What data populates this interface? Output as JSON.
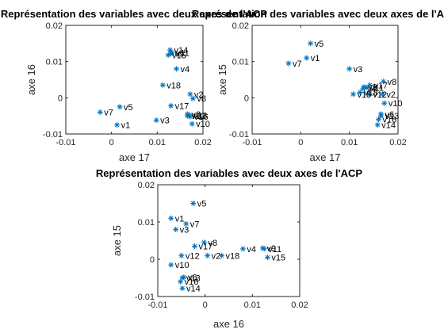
{
  "chart_data": [
    {
      "type": "scatter",
      "title": "Représentation des variables avec deux axes de l'ACP",
      "xlabel": "axe 17",
      "ylabel": "axe 16",
      "xlim": [
        -0.01,
        0.02
      ],
      "ylim": [
        -0.01,
        0.02
      ],
      "xticks": [
        "-0.01",
        "0",
        "0.01",
        "0.02"
      ],
      "yticks": [
        "-0.01",
        "0",
        "0.01",
        "0.02"
      ],
      "marker_color": "#0072BD",
      "points": [
        {
          "label": "v1",
          "x": 0.0012,
          "y": -0.0075
        },
        {
          "label": "v2",
          "x": 0.0172,
          "y": 0.001
        },
        {
          "label": "v3",
          "x": 0.0098,
          "y": -0.0062
        },
        {
          "label": "v4",
          "x": 0.0142,
          "y": 0.008
        },
        {
          "label": "v5",
          "x": 0.0018,
          "y": -0.0025
        },
        {
          "label": "v6",
          "x": 0.0166,
          "y": -0.0045
        },
        {
          "label": "v7",
          "x": -0.0025,
          "y": -0.004
        },
        {
          "label": "v8",
          "x": 0.0178,
          "y": -0.0002
        },
        {
          "label": "v9",
          "x": 0.013,
          "y": 0.0122
        },
        {
          "label": "v10",
          "x": 0.0176,
          "y": -0.0072
        },
        {
          "label": "v11",
          "x": 0.0132,
          "y": 0.0125
        },
        {
          "label": "v12",
          "x": 0.0166,
          "y": -0.005
        },
        {
          "label": "v13",
          "x": 0.017,
          "y": -0.0048
        },
        {
          "label": "v14",
          "x": 0.0128,
          "y": 0.0132
        },
        {
          "label": "v15",
          "x": 0.0124,
          "y": 0.0118
        },
        {
          "label": "v16",
          "x": 0.0172,
          "y": -0.0052
        },
        {
          "label": "v17",
          "x": 0.013,
          "y": -0.0022
        },
        {
          "label": "v18",
          "x": 0.0112,
          "y": 0.0035
        }
      ]
    },
    {
      "type": "scatter",
      "title": "Représentation des variables avec deux axes de l'ACP",
      "xlabel": "axe 17",
      "ylabel": "axe 15",
      "xlim": [
        -0.01,
        0.02
      ],
      "ylim": [
        -0.01,
        0.02
      ],
      "xticks": [
        "-0.01",
        "0",
        "0.01",
        "0.02"
      ],
      "yticks": [
        "-0.01",
        "0",
        "0.01",
        "0.02"
      ],
      "marker_color": "#0072BD",
      "points": [
        {
          "label": "v1",
          "x": 0.0012,
          "y": 0.011
        },
        {
          "label": "v2",
          "x": 0.0168,
          "y": 0.001
        },
        {
          "label": "v3",
          "x": 0.01,
          "y": 0.008
        },
        {
          "label": "v4",
          "x": 0.0128,
          "y": 0.0025
        },
        {
          "label": "v5",
          "x": 0.002,
          "y": 0.015
        },
        {
          "label": "v6",
          "x": 0.0165,
          "y": -0.0045
        },
        {
          "label": "v7",
          "x": -0.0025,
          "y": 0.0095
        },
        {
          "label": "v8",
          "x": 0.017,
          "y": 0.0045
        },
        {
          "label": "v9",
          "x": 0.013,
          "y": 0.003
        },
        {
          "label": "v10",
          "x": 0.0172,
          "y": -0.0015
        },
        {
          "label": "v11",
          "x": 0.0135,
          "y": 0.0028
        },
        {
          "label": "v12",
          "x": 0.014,
          "y": 0.001
        },
        {
          "label": "v13",
          "x": 0.0165,
          "y": -0.005
        },
        {
          "label": "v14",
          "x": 0.0158,
          "y": -0.0075
        },
        {
          "label": "v15",
          "x": 0.0108,
          "y": 0.001
        },
        {
          "label": "v16",
          "x": 0.016,
          "y": -0.006
        },
        {
          "label": "v17",
          "x": 0.0142,
          "y": 0.0035
        },
        {
          "label": "v18",
          "x": 0.0122,
          "y": 0.0015
        }
      ]
    },
    {
      "type": "scatter",
      "title": "Représentation des variables avec deux axes de l'ACP",
      "xlabel": "axe 16",
      "ylabel": "axe 15",
      "xlim": [
        -0.01,
        0.02
      ],
      "ylim": [
        -0.01,
        0.02
      ],
      "xticks": [
        "-0.01",
        "0",
        "0.01",
        "0.02"
      ],
      "yticks": [
        "-0.01",
        "0",
        "0.01",
        "0.02"
      ],
      "marker_color": "#0072BD",
      "points": [
        {
          "label": "v1",
          "x": -0.0072,
          "y": 0.011
        },
        {
          "label": "v2",
          "x": 0.0005,
          "y": 0.001
        },
        {
          "label": "v3",
          "x": -0.0062,
          "y": 0.008
        },
        {
          "label": "v4",
          "x": 0.008,
          "y": 0.0028
        },
        {
          "label": "v5",
          "x": -0.0025,
          "y": 0.015
        },
        {
          "label": "v6",
          "x": -0.0045,
          "y": -0.0048
        },
        {
          "label": "v7",
          "x": -0.004,
          "y": 0.0095
        },
        {
          "label": "v8",
          "x": -0.0002,
          "y": 0.0045
        },
        {
          "label": "v9",
          "x": 0.0122,
          "y": 0.003
        },
        {
          "label": "v10",
          "x": -0.0072,
          "y": -0.0015
        },
        {
          "label": "v11",
          "x": 0.0125,
          "y": 0.0028
        },
        {
          "label": "v12",
          "x": -0.005,
          "y": 0.001
        },
        {
          "label": "v13",
          "x": -0.0048,
          "y": -0.005
        },
        {
          "label": "v14",
          "x": -0.0048,
          "y": -0.0078
        },
        {
          "label": "v15",
          "x": 0.0132,
          "y": 0.0005
        },
        {
          "label": "v16",
          "x": -0.0052,
          "y": -0.006
        },
        {
          "label": "v17",
          "x": -0.0022,
          "y": 0.0035
        },
        {
          "label": "v18",
          "x": 0.0035,
          "y": 0.001
        }
      ]
    }
  ]
}
